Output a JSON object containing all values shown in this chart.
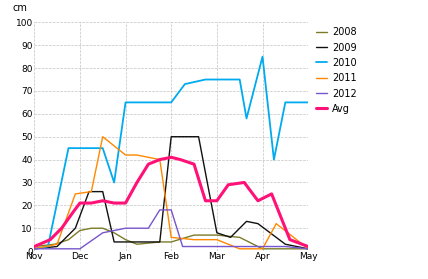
{
  "title": "cm",
  "ylim": [
    0,
    100
  ],
  "yticks": [
    0,
    10,
    20,
    30,
    40,
    50,
    60,
    70,
    80,
    90,
    100
  ],
  "x_labels": [
    "Nov",
    "Dec",
    "Jan",
    "Feb",
    "Mar",
    "Apr",
    "May"
  ],
  "background_color": "#ffffff",
  "grid_color": "#bbbbbb",
  "series": {
    "2008": {
      "color": "#7b7b28",
      "lw": 1.0,
      "x": [
        0,
        0.45,
        0.75,
        1.0,
        1.25,
        1.5,
        1.75,
        2.0,
        2.25,
        2.75,
        3.0,
        3.5,
        4.0,
        4.5,
        5.0,
        5.5,
        6.0
      ],
      "y": [
        2,
        3,
        5,
        9,
        10,
        10,
        8,
        5,
        3,
        4,
        4,
        7,
        7,
        6,
        1,
        1,
        1
      ]
    },
    "2009": {
      "color": "#111111",
      "lw": 1.0,
      "x": [
        0,
        0.5,
        0.9,
        1.2,
        1.5,
        1.75,
        2.0,
        2.2,
        2.5,
        2.75,
        3.0,
        3.25,
        3.6,
        4.0,
        4.3,
        4.65,
        4.9,
        5.5,
        6.0
      ],
      "y": [
        1,
        2,
        10,
        26,
        26,
        4,
        4,
        4,
        4,
        4,
        50,
        50,
        50,
        8,
        6,
        13,
        12,
        3,
        1
      ]
    },
    "2010": {
      "color": "#00aaee",
      "lw": 1.3,
      "x": [
        0,
        0.3,
        0.75,
        1.1,
        1.5,
        1.75,
        2.0,
        2.5,
        3.0,
        3.3,
        3.75,
        4.0,
        4.5,
        4.65,
        5.0,
        5.25,
        5.5,
        6.0
      ],
      "y": [
        1,
        2,
        45,
        45,
        45,
        30,
        65,
        65,
        65,
        73,
        75,
        75,
        75,
        58,
        85,
        40,
        65,
        65
      ]
    },
    "2011": {
      "color": "#ff8800",
      "lw": 1.0,
      "x": [
        0,
        0.5,
        0.9,
        1.25,
        1.5,
        1.75,
        2.0,
        2.25,
        2.5,
        2.75,
        3.0,
        3.5,
        4.0,
        4.5,
        5.0,
        5.3,
        6.0
      ],
      "y": [
        1,
        3,
        25,
        26,
        50,
        46,
        42,
        42,
        41,
        40,
        6,
        5,
        5,
        1,
        1,
        12,
        1
      ]
    },
    "2012": {
      "color": "#7755cc",
      "lw": 1.0,
      "x": [
        0,
        0.7,
        1.0,
        1.5,
        1.75,
        2.0,
        2.25,
        2.5,
        2.75,
        3.0,
        3.25,
        3.75,
        4.0,
        4.5,
        5.0,
        5.5,
        6.0
      ],
      "y": [
        1,
        1,
        1,
        8,
        9,
        10,
        10,
        10,
        18,
        18,
        2,
        2,
        2,
        2,
        2,
        2,
        1
      ]
    },
    "Avg": {
      "color": "#ff1177",
      "lw": 2.2,
      "x": [
        0,
        0.35,
        0.6,
        0.85,
        1.0,
        1.25,
        1.5,
        1.75,
        2.0,
        2.25,
        2.5,
        2.75,
        3.0,
        3.2,
        3.5,
        3.75,
        4.0,
        4.25,
        4.6,
        4.9,
        5.2,
        5.6,
        6.0
      ],
      "y": [
        2,
        5,
        10,
        17,
        21,
        21,
        22,
        21,
        21,
        30,
        38,
        40,
        41,
        40,
        38,
        22,
        22,
        29,
        30,
        22,
        25,
        5,
        2
      ]
    }
  },
  "legend_order": [
    "2008",
    "2009",
    "2010",
    "2011",
    "2012",
    "Avg"
  ]
}
